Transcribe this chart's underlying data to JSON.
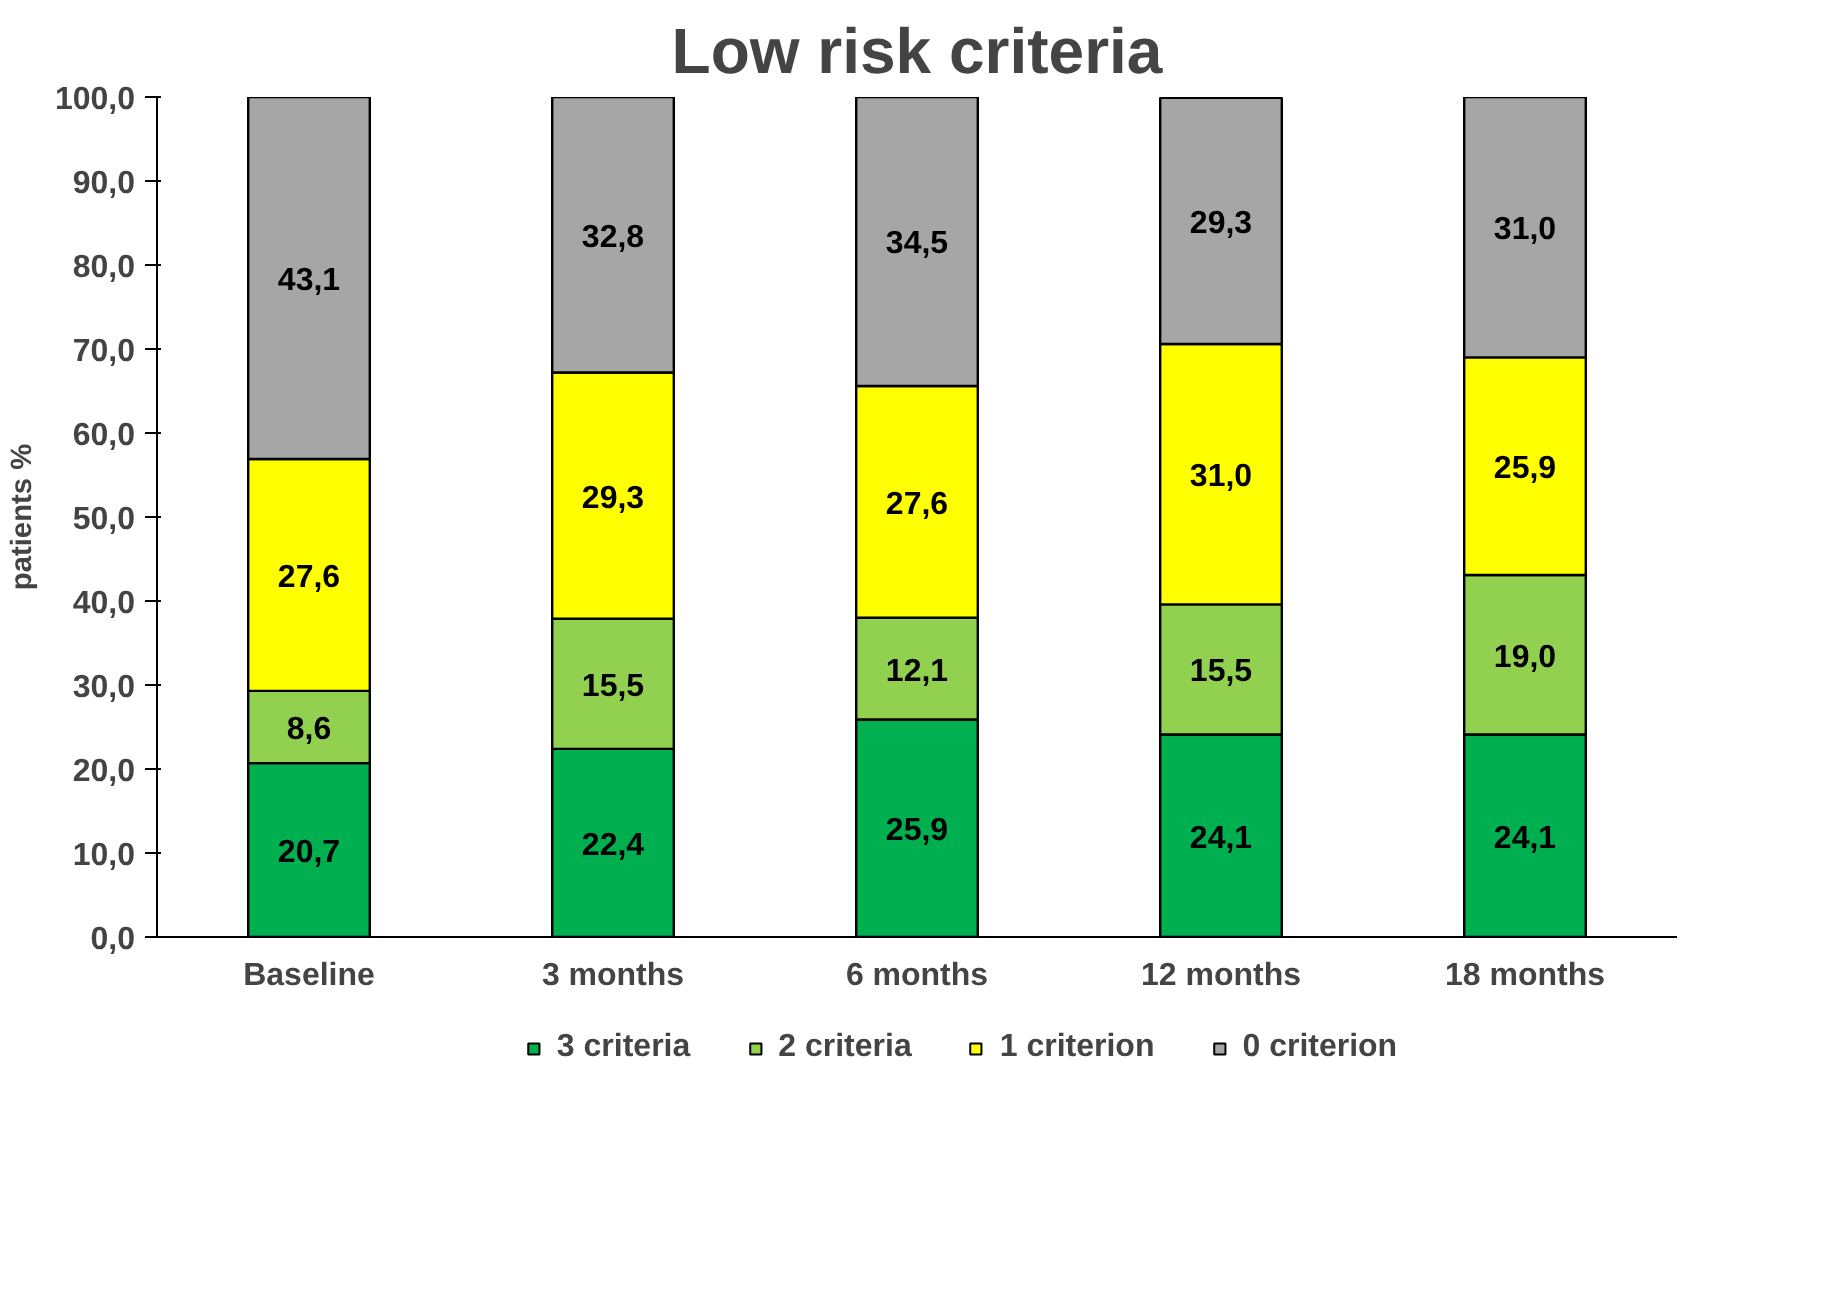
{
  "chart_data": {
    "type": "bar",
    "stacked": true,
    "title": "Low risk criteria",
    "ylabel": "patients %",
    "categories": [
      "Baseline",
      "3 months",
      "6 months",
      "12 months",
      "18 months"
    ],
    "series": [
      {
        "name": "3 criteria",
        "color": "#00b050",
        "values": [
          20.7,
          22.4,
          25.9,
          24.1,
          24.1
        ],
        "value_labels": [
          "20,7",
          "22,4",
          "25,9",
          "24,1",
          "24,1"
        ]
      },
      {
        "name": "2 criteria",
        "color": "#92d050",
        "values": [
          8.6,
          15.5,
          12.1,
          15.5,
          19.0
        ],
        "value_labels": [
          "8,6",
          "15,5",
          "12,1",
          "15,5",
          "19,0"
        ]
      },
      {
        "name": "1 criterion",
        "color": "#ffff00",
        "values": [
          27.6,
          29.3,
          27.6,
          31.0,
          25.9
        ],
        "value_labels": [
          "27,6",
          "29,3",
          "27,6",
          "31,0",
          "25,9"
        ]
      },
      {
        "name": "0 criterion",
        "color": "#a6a6a6",
        "values": [
          43.1,
          32.8,
          34.5,
          29.3,
          31.0
        ],
        "value_labels": [
          "43,1",
          "32,8",
          "34,5",
          "29,3",
          "31,0"
        ]
      }
    ],
    "ylim": [
      0,
      100
    ],
    "yticks": [
      {
        "value": 0,
        "label": "0,0"
      },
      {
        "value": 10,
        "label": "10,0"
      },
      {
        "value": 20,
        "label": "20,0"
      },
      {
        "value": 30,
        "label": "30,0"
      },
      {
        "value": 40,
        "label": "40,0"
      },
      {
        "value": 50,
        "label": "50,0"
      },
      {
        "value": 60,
        "label": "60,0"
      },
      {
        "value": 70,
        "label": "70,0"
      },
      {
        "value": 80,
        "label": "80,0"
      },
      {
        "value": 90,
        "label": "90,0"
      },
      {
        "value": 100,
        "label": "100,0"
      }
    ],
    "grid": false,
    "legend": "bottom"
  }
}
